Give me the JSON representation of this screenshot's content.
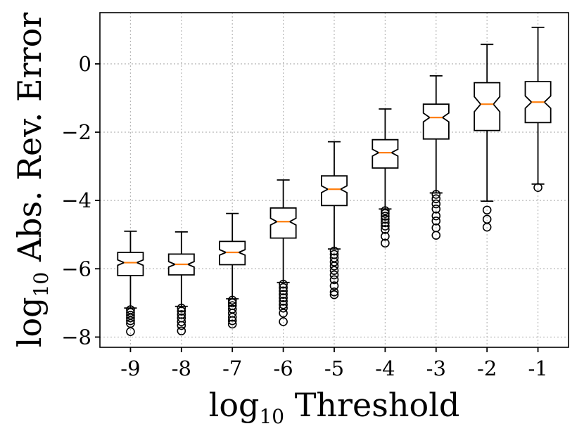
{
  "chart_data": {
    "type": "boxplot",
    "notched": true,
    "xlabel": "log",
    "xlabel_subscript": "10",
    "xlabel_suffix": " Threshold",
    "ylabel": "log",
    "ylabel_subscript": "10",
    "ylabel_suffix": " Abs. Rev. Error",
    "categories": [
      "-9",
      "-8",
      "-7",
      "-6",
      "-5",
      "-4",
      "-3",
      "-2",
      "-1"
    ],
    "ylim": [
      -8.3,
      1.5
    ],
    "yticks": [
      0,
      -2,
      -4,
      -6,
      -8
    ],
    "ytick_labels": [
      "0",
      "−2",
      "−4",
      "−6",
      "−8"
    ],
    "grid": true,
    "boxes": [
      {
        "whislo": -7.15,
        "q1": -6.2,
        "med": -5.82,
        "q3": -5.52,
        "whishi": -4.9,
        "notch_lo": -5.9,
        "notch_hi": -5.74,
        "fliers": [
          -7.2,
          -7.28,
          -7.36,
          -7.44,
          -7.52,
          -7.6,
          -7.84
        ]
      },
      {
        "whislo": -7.1,
        "q1": -6.18,
        "med": -5.87,
        "q3": -5.57,
        "whishi": -4.92,
        "notch_lo": -5.95,
        "notch_hi": -5.79,
        "fliers": [
          -7.15,
          -7.24,
          -7.34,
          -7.44,
          -7.55,
          -7.66,
          -7.82
        ]
      },
      {
        "whislo": -6.88,
        "q1": -5.88,
        "med": -5.52,
        "q3": -5.2,
        "whishi": -4.38,
        "notch_lo": -5.6,
        "notch_hi": -5.44,
        "fliers": [
          -6.92,
          -7.0,
          -7.08,
          -7.18,
          -7.3,
          -7.42,
          -7.52,
          -7.62
        ]
      },
      {
        "whislo": -6.4,
        "q1": -5.1,
        "med": -4.62,
        "q3": -4.22,
        "whishi": -3.4,
        "notch_lo": -4.72,
        "notch_hi": -4.52,
        "fliers": [
          -6.45,
          -6.55,
          -6.65,
          -6.75,
          -6.85,
          -6.95,
          -7.05,
          -7.15,
          -7.3,
          -7.55
        ]
      },
      {
        "whislo": -5.42,
        "q1": -4.15,
        "med": -3.67,
        "q3": -3.28,
        "whishi": -2.28,
        "notch_lo": -3.77,
        "notch_hi": -3.57,
        "fliers": [
          -5.48,
          -5.58,
          -5.68,
          -5.8,
          -5.92,
          -6.05,
          -6.18,
          -6.32,
          -6.5,
          -6.68,
          -6.76
        ]
      },
      {
        "whislo": -4.25,
        "q1": -3.05,
        "med": -2.6,
        "q3": -2.22,
        "whishi": -1.32,
        "notch_lo": -2.7,
        "notch_hi": -2.5,
        "fliers": [
          -4.3,
          -4.38,
          -4.46,
          -4.55,
          -4.65,
          -4.75,
          -4.85,
          -5.05,
          -5.25
        ]
      },
      {
        "whislo": -3.78,
        "q1": -2.2,
        "med": -1.57,
        "q3": -1.18,
        "whishi": -0.35,
        "notch_lo": -1.7,
        "notch_hi": -1.44,
        "fliers": [
          -3.82,
          -3.95,
          -4.1,
          -4.25,
          -4.45,
          -4.6,
          -4.8,
          -5.02
        ]
      },
      {
        "whislo": -4.02,
        "q1": -1.95,
        "med": -1.18,
        "q3": -0.55,
        "whishi": 0.57,
        "notch_lo": -1.4,
        "notch_hi": -0.96,
        "fliers": [
          -4.28,
          -4.55,
          -4.78
        ]
      },
      {
        "whislo": -3.52,
        "q1": -1.72,
        "med": -1.12,
        "q3": -0.52,
        "whishi": 1.07,
        "notch_lo": -1.3,
        "notch_hi": -0.94,
        "fliers": [
          -3.62
        ]
      }
    ]
  }
}
